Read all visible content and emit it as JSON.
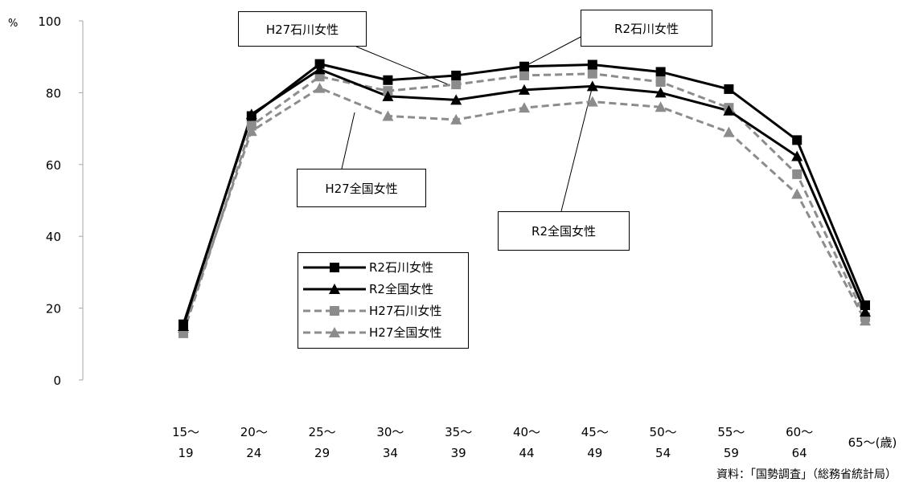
{
  "chart_data": {
    "type": "line",
    "yunit": "%",
    "ylim": [
      0,
      100
    ],
    "yticks": [
      0,
      20,
      40,
      60,
      80,
      100
    ],
    "categories": [
      [
        "15～",
        "19"
      ],
      [
        "20～",
        "24"
      ],
      [
        "25～",
        "29"
      ],
      [
        "30～",
        "34"
      ],
      [
        "35～",
        "39"
      ],
      [
        "40～",
        "44"
      ],
      [
        "45～",
        "49"
      ],
      [
        "50～",
        "54"
      ],
      [
        "55～",
        "59"
      ],
      [
        "60～",
        "64"
      ],
      [
        "65～(歳)",
        ""
      ]
    ],
    "series": [
      {
        "name": "R2石川女性",
        "color": "#000000",
        "style": "solid",
        "marker": "square",
        "values": [
          15.5,
          73.5,
          88.0,
          83.5,
          84.8,
          87.3,
          87.8,
          85.8,
          81.0,
          66.8,
          20.8
        ]
      },
      {
        "name": "R2全国女性",
        "color": "#000000",
        "style": "solid",
        "marker": "triangle",
        "values": [
          15.0,
          74.0,
          86.5,
          79.0,
          78.0,
          80.8,
          81.8,
          80.0,
          75.0,
          62.3,
          19.0
        ]
      },
      {
        "name": "H27石川女性",
        "color": "#8c8c8c",
        "style": "dashed",
        "marker": "square",
        "values": [
          13.0,
          70.8,
          84.5,
          80.5,
          82.3,
          84.8,
          85.3,
          83.0,
          75.8,
          57.3,
          17.5
        ]
      },
      {
        "name": "H27全国女性",
        "color": "#8c8c8c",
        "style": "dashed",
        "marker": "triangle",
        "values": [
          14.5,
          69.3,
          81.3,
          73.5,
          72.5,
          75.8,
          77.5,
          76.0,
          69.0,
          51.8,
          16.5
        ]
      }
    ],
    "callouts": [
      {
        "label": "H27石川女性",
        "series": 2,
        "point": 4
      },
      {
        "label": "R2石川女性",
        "series": 0,
        "point": 5
      },
      {
        "label": "H27全国女性",
        "series": 3,
        "point": 2
      },
      {
        "label": "R2全国女性",
        "series": 1,
        "point": 6
      }
    ],
    "legend": [
      "R2石川女性",
      "R2全国女性",
      "H27石川女性",
      "H27全国女性"
    ],
    "source": "資料：「国勢調査」（総務省統計局）"
  }
}
